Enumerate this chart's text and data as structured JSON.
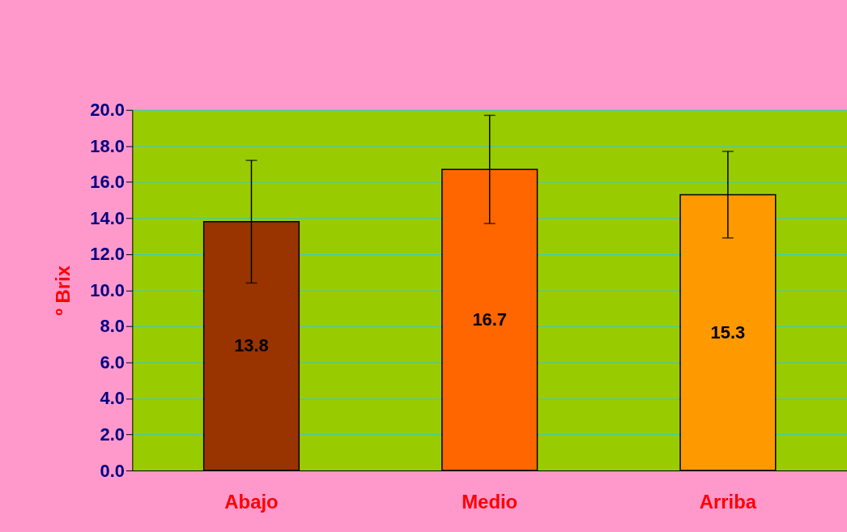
{
  "chart_data": {
    "type": "bar",
    "ylabel": "º Brix",
    "categories": [
      "Abajo",
      "Medio",
      "Arriba"
    ],
    "values": [
      13.8,
      16.7,
      15.3
    ],
    "colors": [
      "#993300",
      "#ff6600",
      "#ff9900"
    ],
    "errors": [
      3.4,
      3.0,
      2.4
    ],
    "ylim": [
      0,
      20
    ],
    "yticks": [
      {
        "value": 0,
        "label": "0.0"
      },
      {
        "value": 2,
        "label": "2.0"
      },
      {
        "value": 4,
        "label": "4.0"
      },
      {
        "value": 6,
        "label": "6.0"
      },
      {
        "value": 8,
        "label": "8.0"
      },
      {
        "value": 10,
        "label": "10.0"
      },
      {
        "value": 12,
        "label": "12.0"
      },
      {
        "value": 14,
        "label": "14.0"
      },
      {
        "value": 16,
        "label": "16.0"
      },
      {
        "value": 18,
        "label": "18.0"
      },
      {
        "value": 20,
        "label": "20.0"
      }
    ],
    "grid": "y",
    "data_labels": true
  }
}
